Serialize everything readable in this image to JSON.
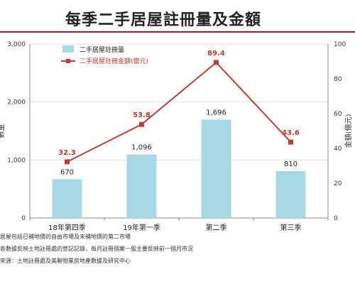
{
  "title": "每季二手居屋註冊量及金額",
  "colors": {
    "bar": "#a8d8e6",
    "line": "#bf3a3a",
    "value_label": "#c0392b",
    "grid": "#dddddd",
    "title_rule": "#9e1b32"
  },
  "chart_data": {
    "type": "bar",
    "categories": [
      "18年第四季",
      "19年第一季",
      "第二季",
      "第三季"
    ],
    "series": [
      {
        "name": "二手居屋註冊量",
        "type": "bar",
        "axis": "left",
        "values": [
          670,
          1096,
          1696,
          810
        ]
      },
      {
        "name": "二手居屋註冊金額(億元)",
        "type": "line",
        "axis": "right",
        "values": [
          32.3,
          53.8,
          89.4,
          43.6
        ]
      }
    ],
    "y_left": {
      "label": "數量",
      "lim": [
        0,
        3000
      ],
      "ticks": [
        0,
        1000,
        2000,
        3000
      ],
      "tick_labels": [
        "0",
        "1,000",
        "2,000",
        "3,000"
      ]
    },
    "y_right": {
      "label": "金額(億元)",
      "lim": [
        0,
        100
      ],
      "ticks": [
        0,
        20,
        40,
        60,
        80,
        100
      ],
      "tick_labels": [
        "0",
        "20",
        "40",
        "60",
        "80",
        "100"
      ]
    },
    "bar_labels": [
      "670",
      "1,096",
      "1,696",
      "810"
    ],
    "line_labels": [
      "32.3",
      "53.8",
      "89.4",
      "43.6"
    ],
    "grid": "horizontal",
    "legend_position": "top-left"
  },
  "notes": [
    "居屋包括已補地價的自由市場及未補地價的第二市場",
    "各數據反映土地註冊處的登記記錄，每月註冊個案一般主要反映前一個月市況",
    "來源：土地註冊處及美聯物業房地產數據及研究中心"
  ]
}
